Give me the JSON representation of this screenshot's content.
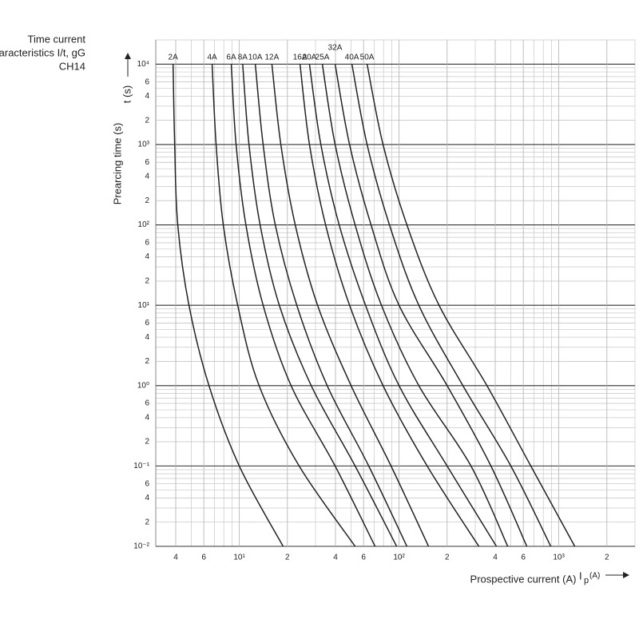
{
  "chart_data": {
    "type": "line",
    "title": [
      "Time current",
      "characteristics I/t, gG",
      "CH14"
    ],
    "y_label": "Prearcing time (s)",
    "y_symbol": "t (s)",
    "x_label": "Prospective current (A)",
    "x_symbol": "I",
    "x_symbol_sub": "p",
    "x_symbol_unit": "(A)",
    "log_x": true,
    "log_y": true,
    "grid": true,
    "xlim": [
      3,
      3000
    ],
    "ylim": [
      0.01,
      20000
    ],
    "xticks": [
      4,
      6,
      {
        "value": 10,
        "label": "10¹"
      },
      {
        "value": 20,
        "label": "2"
      },
      {
        "value": 40,
        "label": "4"
      },
      {
        "value": 60,
        "label": "6"
      },
      {
        "value": 100,
        "label": "10²"
      },
      {
        "value": 200,
        "label": "2"
      },
      {
        "value": 400,
        "label": "4"
      },
      {
        "value": 600,
        "label": "6"
      },
      {
        "value": 1000,
        "label": "10³"
      },
      {
        "value": 2000,
        "label": "2"
      }
    ],
    "yticks": [
      {
        "value": 0.01,
        "label": "10⁻²"
      },
      {
        "value": 0.02,
        "label": "2"
      },
      {
        "value": 0.04,
        "label": "4"
      },
      {
        "value": 0.06,
        "label": "6"
      },
      {
        "value": 0.1,
        "label": "10⁻¹"
      },
      {
        "value": 0.2,
        "label": "2"
      },
      {
        "value": 0.4,
        "label": "4"
      },
      {
        "value": 0.6,
        "label": "6"
      },
      {
        "value": 1,
        "label": "10⁰"
      },
      2,
      4,
      6,
      {
        "value": 10,
        "label": "10¹"
      },
      {
        "value": 20,
        "label": "2"
      },
      {
        "value": 40,
        "label": "4"
      },
      {
        "value": 60,
        "label": "6"
      },
      {
        "value": 100,
        "label": "10²"
      },
      {
        "value": 200,
        "label": "2"
      },
      {
        "value": 400,
        "label": "4"
      },
      {
        "value": 600,
        "label": "6"
      },
      {
        "value": 1000,
        "label": "10³"
      },
      {
        "value": 2000,
        "label": "2"
      },
      {
        "value": 4000,
        "label": "4"
      },
      {
        "value": 6000,
        "label": "6"
      },
      {
        "value": 10000,
        "label": "10⁴"
      }
    ],
    "series": [
      {
        "name": "2A",
        "color": "#222222",
        "x": [
          3.85,
          3.94,
          4.12,
          4.84,
          6.46,
          10,
          18.8
        ],
        "values": [
          10000,
          1000,
          100,
          10,
          1,
          0.1,
          0.01
        ]
      },
      {
        "name": "4A",
        "color": "#222222",
        "x": [
          6.76,
          7.16,
          7.94,
          9.77,
          13.3,
          23.7,
          53.1
        ],
        "values": [
          10000,
          1000,
          100,
          10,
          1,
          0.1,
          0.01
        ]
      },
      {
        "name": "6A",
        "color": "#222222",
        "x": [
          8.91,
          9.55,
          11.0,
          14.1,
          21.1,
          39.8,
          70.8
        ],
        "values": [
          10000,
          1000,
          100,
          10,
          1,
          0.1,
          0.01
        ]
      },
      {
        "name": "8A",
        "color": "#222222",
        "x": [
          10.5,
          11.5,
          13.5,
          17.8,
          28.2,
          53.1,
          96.6
        ],
        "values": [
          10000,
          1000,
          100,
          10,
          1,
          0.1,
          0.01
        ]
      },
      {
        "name": "10A",
        "color": "#222222",
        "x": [
          12.6,
          14.1,
          16.8,
          22.9,
          35.5,
          64.6,
          112
        ],
        "values": [
          10000,
          1000,
          100,
          10,
          1,
          0.1,
          0.01
        ]
      },
      {
        "name": "12A",
        "color": "#222222",
        "x": [
          16.0,
          18.2,
          22.4,
          30.9,
          50.1,
          89.1,
          153
        ],
        "values": [
          10000,
          1000,
          100,
          10,
          1,
          0.1,
          0.01
        ]
      },
      {
        "name": "16A",
        "color": "#222222",
        "x": [
          24.0,
          27.5,
          34.7,
          49.0,
          79.4,
          150,
          316
        ],
        "values": [
          10000,
          1000,
          100,
          10,
          1,
          0.1,
          0.01
        ]
      },
      {
        "name": "20A",
        "color": "#222222",
        "x": [
          27.5,
          32.4,
          42.2,
          61.7,
          100,
          200,
          407
        ],
        "values": [
          10000,
          1000,
          100,
          10,
          1,
          0.1,
          0.01
        ]
      },
      {
        "name": "25A",
        "color": "#222222",
        "x": [
          33.1,
          39.8,
          53.1,
          77.6,
          133,
          282,
          479
        ],
        "values": [
          10000,
          1000,
          100,
          10,
          1,
          0.1,
          0.01
        ]
      },
      {
        "name": "32A",
        "color": "#222222",
        "x": [
          39.8,
          49.0,
          66.8,
          100,
          200,
          376,
          631
        ],
        "values": [
          10000,
          1000,
          100,
          10,
          1,
          0.1,
          0.01
        ]
      },
      {
        "name": "40A",
        "color": "#222222",
        "x": [
          50.7,
          63.1,
          87.1,
          133,
          251,
          501,
          891
        ],
        "values": [
          10000,
          1000,
          100,
          10,
          1,
          0.1,
          0.01
        ]
      },
      {
        "name": "50A",
        "color": "#222222",
        "x": [
          63.1,
          79.4,
          112,
          178,
          355,
          668,
          1259
        ],
        "values": [
          10000,
          1000,
          100,
          10,
          1,
          0.1,
          0.01
        ]
      }
    ]
  }
}
